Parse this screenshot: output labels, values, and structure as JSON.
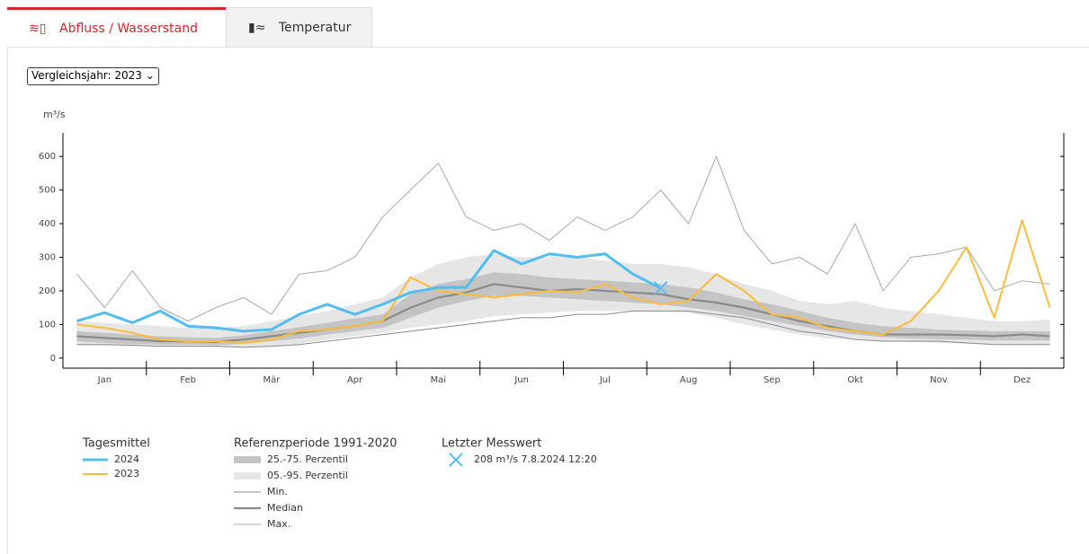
{
  "tabs": [
    "Abfluss / Wasserstand",
    "Temperatur"
  ],
  "selector": "Vergleichsjahr: 2023",
  "chart_data": {
    "type": "line",
    "y_label": "m³/s",
    "categories": [
      null,
      "Jan",
      null,
      null,
      "Feb",
      null,
      null,
      "Mär",
      null,
      null,
      "Apr",
      null,
      null,
      "Mai",
      null,
      null,
      "Jun",
      null,
      null,
      "Jul",
      null,
      null,
      "Aug",
      null,
      null,
      "Sep",
      null,
      null,
      "Okt",
      null,
      null,
      "Nov",
      null,
      null,
      "Dez",
      null
    ],
    "ylim": [
      -30,
      670
    ],
    "yticks": [
      0,
      100,
      200,
      300,
      400,
      500,
      600
    ],
    "bands_title": "Referenzperiode 1991-2020",
    "bands": [
      {
        "name": "05.-95. Perzentil",
        "color": "#e6e6e6",
        "low": [
          38,
          38,
          36,
          35,
          35,
          34,
          33,
          36,
          42,
          55,
          65,
          75,
          90,
          100,
          110,
          125,
          130,
          135,
          140,
          140,
          140,
          140,
          135,
          120,
          100,
          85,
          70,
          58,
          55,
          50,
          48,
          45,
          42,
          40,
          40,
          40
        ],
        "high": [
          110,
          105,
          100,
          95,
          90,
          90,
          95,
          110,
          125,
          140,
          160,
          180,
          240,
          280,
          300,
          310,
          300,
          300,
          300,
          290,
          280,
          280,
          270,
          250,
          220,
          200,
          170,
          160,
          170,
          150,
          140,
          130,
          120,
          110,
          110,
          115
        ]
      },
      {
        "name": "25.-75. Perzentil",
        "color": "#c4c4c4",
        "low": [
          50,
          45,
          42,
          40,
          40,
          38,
          42,
          50,
          58,
          70,
          80,
          90,
          120,
          150,
          170,
          185,
          185,
          180,
          175,
          170,
          165,
          160,
          150,
          140,
          125,
          110,
          95,
          80,
          70,
          62,
          58,
          56,
          55,
          52,
          52,
          52
        ],
        "high": [
          80,
          75,
          70,
          65,
          62,
          60,
          68,
          80,
          92,
          105,
          118,
          130,
          190,
          220,
          235,
          255,
          250,
          240,
          235,
          230,
          225,
          220,
          210,
          195,
          175,
          160,
          140,
          120,
          105,
          95,
          90,
          85,
          82,
          80,
          80,
          80
        ]
      }
    ],
    "series_title": "Tagesmittel",
    "series": [
      {
        "name": "2024",
        "color": "#52bdf0",
        "width": 3,
        "values": [
          110,
          135,
          105,
          140,
          95,
          90,
          80,
          85,
          130,
          160,
          130,
          160,
          195,
          210,
          210,
          320,
          280,
          310,
          300,
          310,
          250,
          208,
          null,
          null,
          null,
          null,
          null,
          null,
          null,
          null,
          null,
          null,
          null,
          null,
          null,
          null
        ]
      },
      {
        "name": "2023",
        "color": "#fbbc3c",
        "width": 2,
        "values": [
          100,
          90,
          75,
          55,
          50,
          50,
          45,
          55,
          80,
          85,
          95,
          110,
          240,
          200,
          190,
          180,
          190,
          200,
          195,
          220,
          180,
          160,
          170,
          250,
          200,
          130,
          120,
          90,
          80,
          70,
          110,
          200,
          330,
          120,
          410,
          150
        ]
      },
      {
        "name": "Min.",
        "color": "#8a8a8a",
        "width": 1,
        "values": [
          40,
          40,
          38,
          35,
          35,
          35,
          32,
          35,
          40,
          50,
          60,
          70,
          80,
          90,
          100,
          110,
          120,
          120,
          130,
          130,
          140,
          140,
          140,
          130,
          120,
          100,
          80,
          70,
          55,
          50,
          50,
          50,
          45,
          40,
          40,
          40
        ]
      },
      {
        "name": "Median",
        "color": "#8a8a8a",
        "width": 2.2,
        "values": [
          65,
          60,
          55,
          50,
          50,
          48,
          55,
          65,
          75,
          85,
          95,
          110,
          150,
          180,
          195,
          220,
          210,
          200,
          205,
          200,
          195,
          190,
          175,
          165,
          150,
          130,
          110,
          95,
          80,
          70,
          70,
          70,
          68,
          65,
          70,
          65
        ]
      },
      {
        "name": "Max.",
        "color": "#a8a8a8",
        "width": 1,
        "values": [
          250,
          150,
          260,
          150,
          110,
          150,
          180,
          130,
          250,
          260,
          300,
          420,
          500,
          580,
          420,
          380,
          400,
          350,
          420,
          380,
          420,
          500,
          400,
          600,
          380,
          280,
          300,
          250,
          400,
          200,
          300,
          310,
          330,
          200,
          230,
          220
        ]
      }
    ],
    "latest": {
      "title": "Letzter Messwert",
      "label": "208 m³/s 7.8.2024 12:20",
      "series": 0,
      "index": 21
    }
  }
}
